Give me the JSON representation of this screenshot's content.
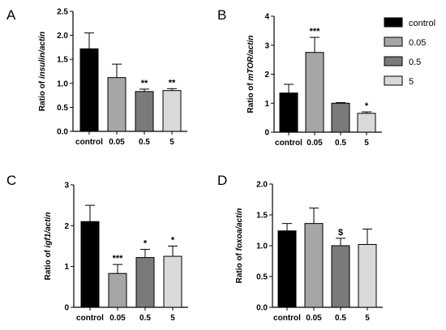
{
  "colors": {
    "control": "#000000",
    "0.05": "#a6a6a6",
    "0.5": "#7a7a7a",
    "5": "#d9d9d9"
  },
  "legend": {
    "entries": [
      "control",
      "0.05",
      "0.5",
      "5"
    ]
  },
  "chart_data": [
    {
      "type": "bar",
      "panel": "A",
      "ylabel_prefix": "Ratio of ",
      "ylabel_italic": "insulin/actin",
      "categories": [
        "control",
        "0.05",
        "0.5",
        "5"
      ],
      "values": [
        1.72,
        1.12,
        0.83,
        0.85
      ],
      "errors": [
        0.33,
        0.28,
        0.05,
        0.04
      ],
      "annotations": [
        "",
        "",
        "**",
        "**"
      ],
      "ylim": [
        0,
        2.5
      ],
      "yticks": [
        "0.0",
        "0.5",
        "1.0",
        "1.5",
        "2.0",
        "2.5"
      ]
    },
    {
      "type": "bar",
      "panel": "B",
      "ylabel_prefix": "Ratio of ",
      "ylabel_italic": "mTOR/actin",
      "categories": [
        "control",
        "0.05",
        "0.5",
        "5"
      ],
      "values": [
        1.35,
        2.75,
        1.0,
        0.65
      ],
      "errors": [
        0.3,
        0.52,
        0.02,
        0.05
      ],
      "annotations": [
        "",
        "***",
        "",
        "*"
      ],
      "ylim": [
        0,
        4
      ],
      "yticks": [
        "0",
        "1",
        "2",
        "3",
        "4"
      ]
    },
    {
      "type": "bar",
      "panel": "C",
      "ylabel_prefix": "Ratio of ",
      "ylabel_italic": "igf1/actin",
      "categories": [
        "control",
        "0.05",
        "0.5",
        "5"
      ],
      "values": [
        2.1,
        0.83,
        1.22,
        1.25
      ],
      "errors": [
        0.4,
        0.22,
        0.2,
        0.25
      ],
      "annotations": [
        "",
        "***",
        "*",
        "*"
      ],
      "ylim": [
        0,
        3
      ],
      "yticks": [
        "0",
        "1",
        "2",
        "3"
      ]
    },
    {
      "type": "bar",
      "panel": "D",
      "ylabel_prefix": "Ratio of ",
      "ylabel_italic": "foxoa/actin",
      "categories": [
        "control",
        "0.05",
        "0.5",
        "5"
      ],
      "values": [
        1.24,
        1.36,
        1.0,
        1.02
      ],
      "errors": [
        0.12,
        0.25,
        0.12,
        0.25
      ],
      "annotations": [
        "",
        "",
        "$",
        ""
      ],
      "ylim": [
        0,
        2.0
      ],
      "yticks": [
        "0.0",
        "0.5",
        "1.0",
        "1.5",
        "2.0"
      ]
    }
  ]
}
